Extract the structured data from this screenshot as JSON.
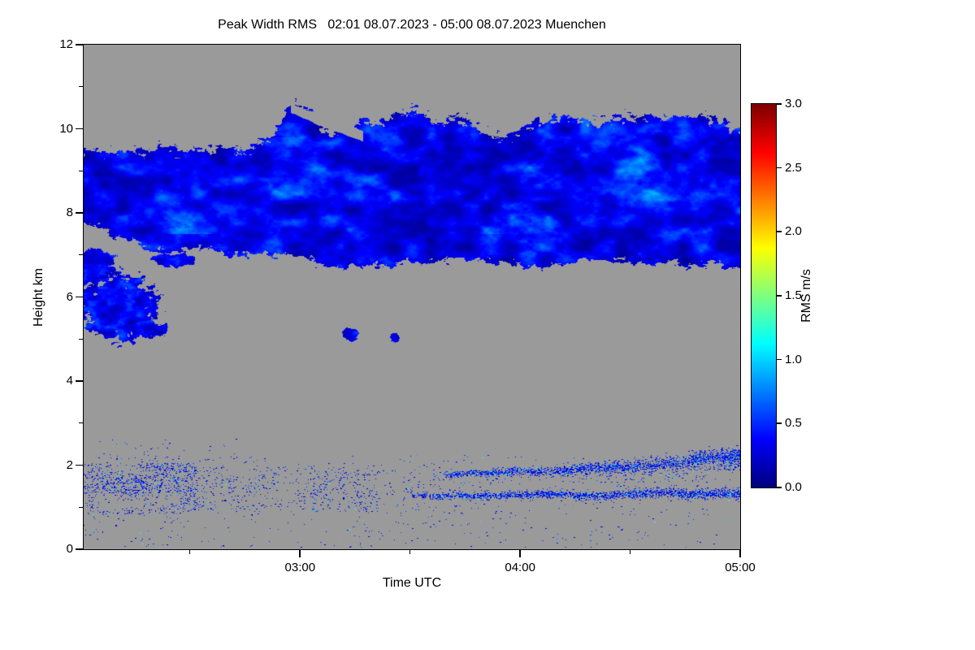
{
  "chart_data": {
    "type": "heatmap",
    "title": "Peak Width RMS   02:01 08.07.2023 - 05:00 08.07.2023 Muenchen",
    "station": "Muenchen",
    "time_start": "02:01 08.07.2023",
    "time_end": "05:00 08.07.2023",
    "xlabel": "Time UTC",
    "ylabel": "Height km",
    "x_total_minutes": 179,
    "x_ticks": [
      {
        "label": "03:00",
        "minutes_from_start": 59
      },
      {
        "label": "04:00",
        "minutes_from_start": 119
      },
      {
        "label": "05:00",
        "minutes_from_start": 179
      }
    ],
    "x_minor_ticks_minutes": [
      29,
      89,
      149
    ],
    "ylim": [
      0,
      12
    ],
    "y_major_ticks": [
      0,
      2,
      4,
      6,
      8,
      10,
      12
    ],
    "y_minor_ticks": [
      1,
      3,
      5,
      7,
      9,
      11
    ],
    "colorbar": {
      "label": "RMS m/s",
      "colormap": "jet",
      "vmin": 0,
      "vmax": 3,
      "ticks": [
        {
          "label": "0.0",
          "v": 0.0
        },
        {
          "label": "0.5",
          "v": 0.5
        },
        {
          "label": "1.0",
          "v": 1.0
        },
        {
          "label": "1.5",
          "v": 1.5
        },
        {
          "label": "2.0",
          "v": 2.0
        },
        {
          "label": "2.5",
          "v": 2.5
        },
        {
          "label": "3.0",
          "v": 3.0
        }
      ]
    },
    "nodata_color": "#9a9a9a",
    "features": [
      {
        "name": "upper-cloud-band",
        "height_km": [
          6.6,
          10.7
        ],
        "time_span": "02:01-05:00 (full width)",
        "rms_m_s": "mostly 0.1-0.6, embedded cyan streaks up to ~1.2 between 7.5 and 9.8 km"
      },
      {
        "name": "mid-level-cloud-patches",
        "height_km": [
          5.0,
          7.1
        ],
        "time_span": "02:01-02:25 plus small specks near 03:25-03:30 at ~5.1 km",
        "rms_m_s": "0.1-0.5"
      },
      {
        "name": "boundary-layer-speckle",
        "height_km": [
          0,
          2.4
        ],
        "time_span": "full width",
        "rms_m_s": "sparse noisy returns 0.1-0.6; coherent thin layers near 1.3 km and 1.8-2.2 km after 04:00"
      }
    ],
    "render": {
      "band": {
        "top_pts": [
          [
            0,
            9.7
          ],
          [
            0.08,
            9.6
          ],
          [
            0.16,
            9.65
          ],
          [
            0.24,
            9.6
          ],
          [
            0.285,
            9.9
          ],
          [
            0.315,
            10.7
          ],
          [
            0.345,
            10.45
          ],
          [
            0.375,
            9.95
          ],
          [
            0.42,
            10.3
          ],
          [
            0.5,
            10.5
          ],
          [
            0.57,
            10.35
          ],
          [
            0.635,
            9.95
          ],
          [
            0.68,
            10.35
          ],
          [
            0.78,
            10.45
          ],
          [
            0.86,
            10.35
          ],
          [
            0.93,
            10.5
          ],
          [
            1,
            10.15
          ]
        ],
        "base_pts": [
          [
            0,
            7.7
          ],
          [
            0.05,
            7.35
          ],
          [
            0.1,
            7.05
          ],
          [
            0.2,
            6.95
          ],
          [
            0.3,
            6.9
          ],
          [
            0.38,
            6.6
          ],
          [
            0.5,
            6.7
          ],
          [
            0.6,
            6.75
          ],
          [
            0.7,
            6.62
          ],
          [
            0.8,
            6.7
          ],
          [
            0.9,
            6.72
          ],
          [
            1,
            6.55
          ]
        ],
        "top_wiggle": 0.22,
        "base_wiggle": 0.18,
        "rms_base": 0.05,
        "rms_var": 0.85,
        "streak_h": [
          7.5,
          9.8
        ],
        "streak_gain": 2.6,
        "slit": {
          "x0": 0.315,
          "x1": 0.425,
          "h0": 10.5,
          "slope": -6,
          "halfw": 0.11
        }
      },
      "blobs": [
        {
          "cx": 0.012,
          "cy": 6.72,
          "rx": 0.04,
          "ry": 0.42,
          "seed": 11
        },
        {
          "cx": 0.055,
          "cy": 5.75,
          "rx": 0.058,
          "ry": 0.78,
          "seed": 23
        },
        {
          "cx": 0.1,
          "cy": 5.25,
          "rx": 0.025,
          "ry": 0.22,
          "seed": 31
        },
        {
          "cx": 0.135,
          "cy": 6.88,
          "rx": 0.034,
          "ry": 0.16,
          "seed": 47
        },
        {
          "cx": 0.405,
          "cy": 5.12,
          "rx": 0.013,
          "ry": 0.15,
          "seed": 53
        },
        {
          "cx": 0.473,
          "cy": 5.05,
          "rx": 0.008,
          "ry": 0.11,
          "seed": 61
        }
      ],
      "speckle_bands": [
        {
          "x": [
            0,
            0.17
          ],
          "h": [
            0.85,
            2.05
          ],
          "density": 0.22,
          "seed": 7
        },
        {
          "x": [
            0.15,
            0.45
          ],
          "h": [
            0.9,
            1.95
          ],
          "density": 0.06,
          "seed": 17
        },
        {
          "x": [
            0.35,
            0.62
          ],
          "h": [
            0.9,
            1.9
          ],
          "density": 0.035,
          "seed": 27
        },
        {
          "x": [
            0,
            0.25
          ],
          "h": [
            2.0,
            2.65
          ],
          "density": 0.012,
          "seed": 37
        },
        {
          "x": [
            0,
            1
          ],
          "h": [
            0.05,
            2.25
          ],
          "density": 0.012,
          "seed": 57
        },
        {
          "x": [
            0.62,
            0.95
          ],
          "h": [
            1.6,
            1.95
          ],
          "density": 0.05,
          "seed": 67
        },
        {
          "x": [
            0.93,
            1
          ],
          "h": [
            1.9,
            2.35
          ],
          "density": 0.25,
          "seed": 91
        }
      ],
      "speckle_lines": [
        {
          "x": [
            0.5,
            1
          ],
          "c0": 1.22,
          "c1": 1.35,
          "w0": 0.04,
          "w1": 0.07,
          "jitter": 0.25,
          "density": 0.55,
          "seed": 73
        },
        {
          "x": [
            0.55,
            1
          ],
          "c0": 1.75,
          "c1": 2.18,
          "w0": 0.035,
          "w1": 0.1,
          "jitter": 0.3,
          "density": 0.5,
          "seed": 83
        }
      ]
    }
  }
}
